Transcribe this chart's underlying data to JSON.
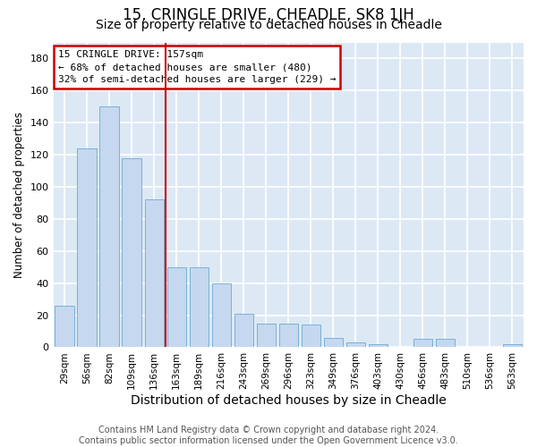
{
  "title": "15, CRINGLE DRIVE, CHEADLE, SK8 1JH",
  "subtitle": "Size of property relative to detached houses in Cheadle",
  "xlabel": "Distribution of detached houses by size in Cheadle",
  "ylabel": "Number of detached properties",
  "categories": [
    "29sqm",
    "56sqm",
    "82sqm",
    "109sqm",
    "136sqm",
    "163sqm",
    "189sqm",
    "216sqm",
    "243sqm",
    "269sqm",
    "296sqm",
    "323sqm",
    "349sqm",
    "376sqm",
    "403sqm",
    "430sqm",
    "456sqm",
    "483sqm",
    "510sqm",
    "536sqm",
    "563sqm"
  ],
  "values": [
    26,
    124,
    150,
    118,
    92,
    50,
    50,
    40,
    21,
    15,
    15,
    14,
    6,
    3,
    2,
    0,
    5,
    5,
    0,
    0,
    2
  ],
  "bar_color": "#c5d8ef",
  "bar_edge_color": "#6aaad4",
  "annotation_text": "15 CRINGLE DRIVE: 157sqm\n← 68% of detached houses are smaller (480)\n32% of semi-detached houses are larger (229) →",
  "annotation_box_color": "#ffffff",
  "annotation_box_edge": "#cc0000",
  "vline_x": 4.5,
  "vline_color": "#cc0000",
  "ylim": [
    0,
    190
  ],
  "yticks": [
    0,
    20,
    40,
    60,
    80,
    100,
    120,
    140,
    160,
    180
  ],
  "plot_bg_color": "#dce9f5",
  "grid_color": "#ffffff",
  "fig_bg_color": "#ffffff",
  "footer": "Contains HM Land Registry data © Crown copyright and database right 2024.\nContains public sector information licensed under the Open Government Licence v3.0.",
  "title_fontsize": 12,
  "subtitle_fontsize": 10,
  "xlabel_fontsize": 10,
  "ylabel_fontsize": 8.5,
  "annotation_fontsize": 8,
  "footer_fontsize": 7
}
